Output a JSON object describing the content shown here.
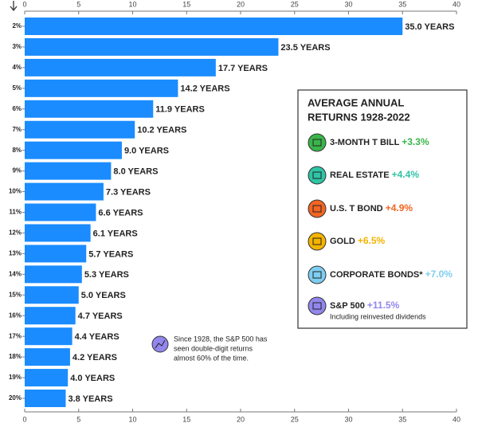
{
  "chart_data": {
    "type": "bar",
    "orientation": "horizontal",
    "categories": [
      "2%",
      "3%",
      "4%",
      "5%",
      "6%",
      "7%",
      "8%",
      "9%",
      "10%",
      "11%",
      "12%",
      "13%",
      "14%",
      "15%",
      "16%",
      "17%",
      "18%",
      "19%",
      "20%"
    ],
    "values": [
      35.0,
      23.5,
      17.7,
      14.2,
      11.9,
      10.2,
      9.0,
      8.0,
      7.3,
      6.6,
      6.1,
      5.7,
      5.3,
      5.0,
      4.7,
      4.4,
      4.2,
      4.0,
      3.8
    ],
    "value_labels": [
      "35.0 YEARS",
      "23.5 YEARS",
      "17.7 YEARS",
      "14.2 YEARS",
      "11.9 YEARS",
      "10.2 YEARS",
      "9.0 YEARS",
      "8.0 YEARS",
      "7.3 YEARS",
      "6.6 YEARS",
      "6.1 YEARS",
      "5.7 YEARS",
      "5.3 YEARS",
      "5.0 YEARS",
      "4.7 YEARS",
      "4.4 YEARS",
      "4.2 YEARS",
      "4.0 YEARS",
      "3.8 YEARS"
    ],
    "color": "#1a8cff",
    "xlim": [
      0,
      40
    ],
    "xticks": [
      0,
      5,
      10,
      15,
      20,
      25,
      30,
      35,
      40
    ],
    "panel": {
      "title": [
        "AVERAGE ANNUAL",
        "RETURNS 1928-2022"
      ],
      "items": [
        {
          "label": "3-MONTH T BILL",
          "return": "+3.3%",
          "color": "#39b54a"
        },
        {
          "label": "REAL ESTATE",
          "return": "+4.4%",
          "color": "#2ec4a5"
        },
        {
          "label": "U.S. T BOND",
          "return": "+4.9%",
          "color": "#f26522"
        },
        {
          "label": "GOLD",
          "return": "+6.5%",
          "color": "#f5b400"
        },
        {
          "label": "CORPORATE BONDS*",
          "return": "+7.0%",
          "color": "#7fcdf1"
        },
        {
          "label": "S&P 500",
          "return": "+11.5%",
          "color": "#9286ee"
        }
      ],
      "note": "Including reinvested dividends"
    },
    "annotation": [
      "Since 1928, the S&P 500 has",
      "seen double-digit returns",
      "almost 60% of the time."
    ]
  }
}
